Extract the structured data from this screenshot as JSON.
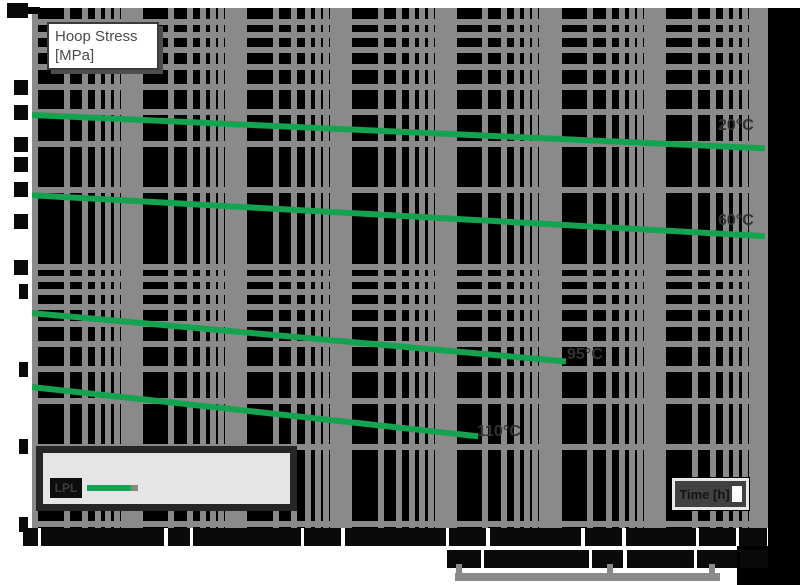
{
  "page": {
    "background": "#ffffff",
    "plot_background": "#000000"
  },
  "colors": {
    "curve_green": "#14a350",
    "grid_gray": "#8a8a8a",
    "label_text": "#333333"
  },
  "y_axis_box": {
    "line1": "Hoop Stress",
    "line2": "[MPa]"
  },
  "x_axis_box": {
    "label": "Time [h]"
  },
  "legend": {
    "entries": [
      {
        "label": "LPL",
        "line_color": "#14a350"
      }
    ]
  },
  "chart_data": {
    "type": "line",
    "title": "",
    "xlabel": "Time [h]",
    "ylabel": "Hoop Stress [MPa]",
    "x_scale": "log",
    "y_scale": "log",
    "x_range": [
      0.1,
      1000000
    ],
    "y_range": [
      1,
      100
    ],
    "grid": "minor log gridlines on both axes",
    "legend_position": "bottom-left",
    "legend_entries": [
      "LPL"
    ],
    "series": [
      {
        "name": "20°C",
        "color": "#14a350",
        "points": [
          [
            0.1,
            39.0
          ],
          [
            876000,
            29.0
          ]
        ]
      },
      {
        "name": "60°C",
        "color": "#14a350",
        "points": [
          [
            0.1,
            19.0
          ],
          [
            876000,
            13.2
          ]
        ]
      },
      {
        "name": "95°C",
        "color": "#14a350",
        "points": [
          [
            0.1,
            6.6
          ],
          [
            11000,
            4.3
          ]
        ]
      },
      {
        "name": "110°C",
        "color": "#14a350",
        "points": [
          [
            0.1,
            3.4
          ],
          [
            1600,
            2.2
          ]
        ]
      }
    ]
  }
}
